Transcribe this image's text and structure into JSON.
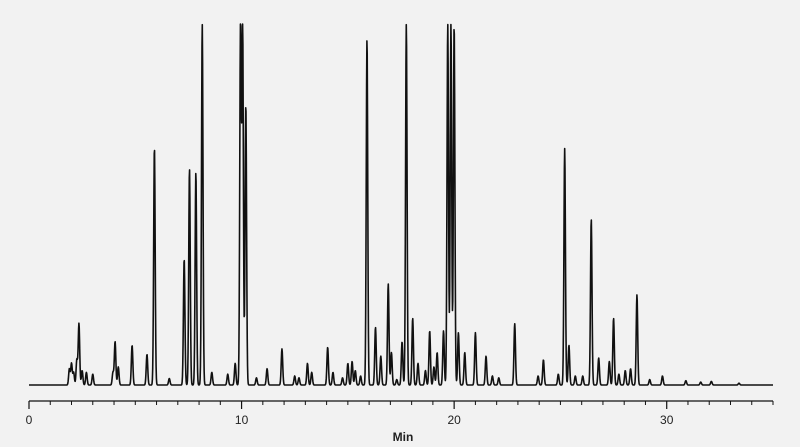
{
  "chart_data": {
    "type": "line",
    "title": "",
    "xlabel": "Min",
    "ylabel": "",
    "xlim": [
      0,
      35
    ],
    "ylim": [
      0,
      1
    ],
    "x_ticks_major": [
      0,
      10,
      20,
      30
    ],
    "x_ticks_minor_step": 1,
    "grid": false,
    "background": "#f2f2f2",
    "line_color": "#111111",
    "series": [
      {
        "name": "",
        "baseline": 0,
        "peaks": [
          [
            1.9,
            0.045
          ],
          [
            2.0,
            0.06
          ],
          [
            2.1,
            0.035
          ],
          [
            2.25,
            0.07
          ],
          [
            2.35,
            0.17
          ],
          [
            2.5,
            0.04
          ],
          [
            2.7,
            0.035
          ],
          [
            3.0,
            0.03
          ],
          [
            3.95,
            0.035
          ],
          [
            4.05,
            0.12
          ],
          [
            4.2,
            0.05
          ],
          [
            4.85,
            0.11
          ],
          [
            5.55,
            0.085
          ],
          [
            5.9,
            0.66
          ],
          [
            6.6,
            0.018
          ],
          [
            7.3,
            0.35
          ],
          [
            7.55,
            0.6
          ],
          [
            7.85,
            0.59
          ],
          [
            8.15,
            1.0
          ],
          [
            8.6,
            0.035
          ],
          [
            9.35,
            0.03
          ],
          [
            9.7,
            0.06
          ],
          [
            9.95,
            1.0
          ],
          [
            10.05,
            1.0
          ],
          [
            10.2,
            0.78
          ],
          [
            10.7,
            0.02
          ],
          [
            11.2,
            0.045
          ],
          [
            11.9,
            0.1
          ],
          [
            12.5,
            0.025
          ],
          [
            12.7,
            0.02
          ],
          [
            13.1,
            0.06
          ],
          [
            13.3,
            0.035
          ],
          [
            14.05,
            0.105
          ],
          [
            14.3,
            0.035
          ],
          [
            14.75,
            0.02
          ],
          [
            15.0,
            0.06
          ],
          [
            15.2,
            0.065
          ],
          [
            15.35,
            0.04
          ],
          [
            15.6,
            0.025
          ],
          [
            15.9,
            0.96
          ],
          [
            16.3,
            0.16
          ],
          [
            16.55,
            0.08
          ],
          [
            16.9,
            0.28
          ],
          [
            17.05,
            0.09
          ],
          [
            17.3,
            0.015
          ],
          [
            17.55,
            0.12
          ],
          [
            17.75,
            1.0
          ],
          [
            18.05,
            0.185
          ],
          [
            18.3,
            0.06
          ],
          [
            18.65,
            0.04
          ],
          [
            18.85,
            0.15
          ],
          [
            19.05,
            0.05
          ],
          [
            19.2,
            0.09
          ],
          [
            19.5,
            0.15
          ],
          [
            19.7,
            1.0
          ],
          [
            19.85,
            1.0
          ],
          [
            20.0,
            1.0
          ],
          [
            20.2,
            0.145
          ],
          [
            20.5,
            0.09
          ],
          [
            21.0,
            0.145
          ],
          [
            21.5,
            0.08
          ],
          [
            21.8,
            0.025
          ],
          [
            22.1,
            0.02
          ],
          [
            22.85,
            0.17
          ],
          [
            23.95,
            0.025
          ],
          [
            24.2,
            0.07
          ],
          [
            24.9,
            0.03
          ],
          [
            25.2,
            0.655
          ],
          [
            25.4,
            0.11
          ],
          [
            25.7,
            0.025
          ],
          [
            26.05,
            0.025
          ],
          [
            26.45,
            0.46
          ],
          [
            26.8,
            0.075
          ],
          [
            27.3,
            0.065
          ],
          [
            27.5,
            0.185
          ],
          [
            27.75,
            0.03
          ],
          [
            28.05,
            0.04
          ],
          [
            28.3,
            0.045
          ],
          [
            28.6,
            0.25
          ],
          [
            29.2,
            0.015
          ],
          [
            29.8,
            0.025
          ],
          [
            30.9,
            0.012
          ],
          [
            31.6,
            0.008
          ],
          [
            32.1,
            0.01
          ],
          [
            33.4,
            0.005
          ]
        ]
      }
    ]
  }
}
